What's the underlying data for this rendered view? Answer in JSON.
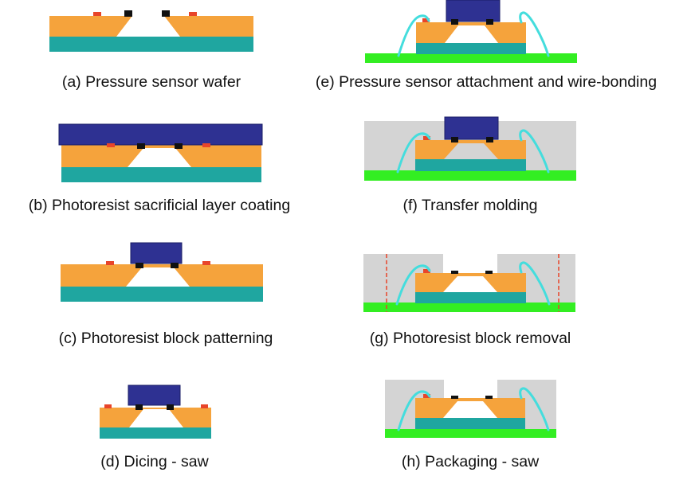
{
  "captions": {
    "a": "(a) Pressure sensor wafer",
    "b": "(b) Photoresist sacrificial layer coating",
    "c": "(c) Photoresist block patterning",
    "d": "(d) Dicing - saw",
    "e": "(e) Pressure sensor attachment and wire-bonding",
    "f": "(f) Transfer molding",
    "g": "(g) Photoresist block removal",
    "h": "(h) Packaging - saw"
  },
  "colors": {
    "silicon": "#f5a33c",
    "glass": "#1fa6a0",
    "photoresist": "#2e3192",
    "substrate": "#33ee22",
    "mold": "#d4d4d4",
    "wire": "#44dddd",
    "pad": "#e8452a",
    "contact": "#111111",
    "cavity": "#ffffff",
    "saw_line": "#e8452a"
  }
}
